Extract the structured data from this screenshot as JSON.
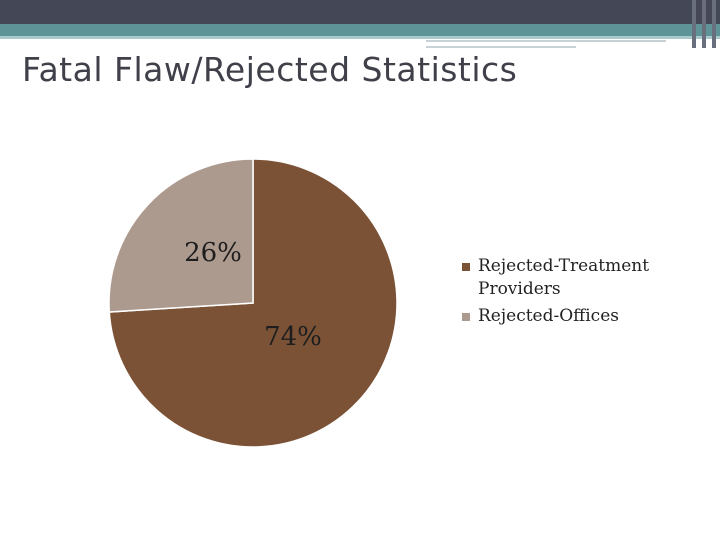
{
  "slide": {
    "title": "Fatal Flaw/Rejected Statistics"
  },
  "chart_data": {
    "type": "pie",
    "title": "",
    "categories": [
      "Rejected-Treatment Providers",
      "Rejected-Offices"
    ],
    "values": [
      74,
      26
    ],
    "data_labels": [
      "74%",
      "26%"
    ],
    "colors": [
      "#7b5236",
      "#ad9a8f"
    ],
    "legend_placement": "right"
  }
}
